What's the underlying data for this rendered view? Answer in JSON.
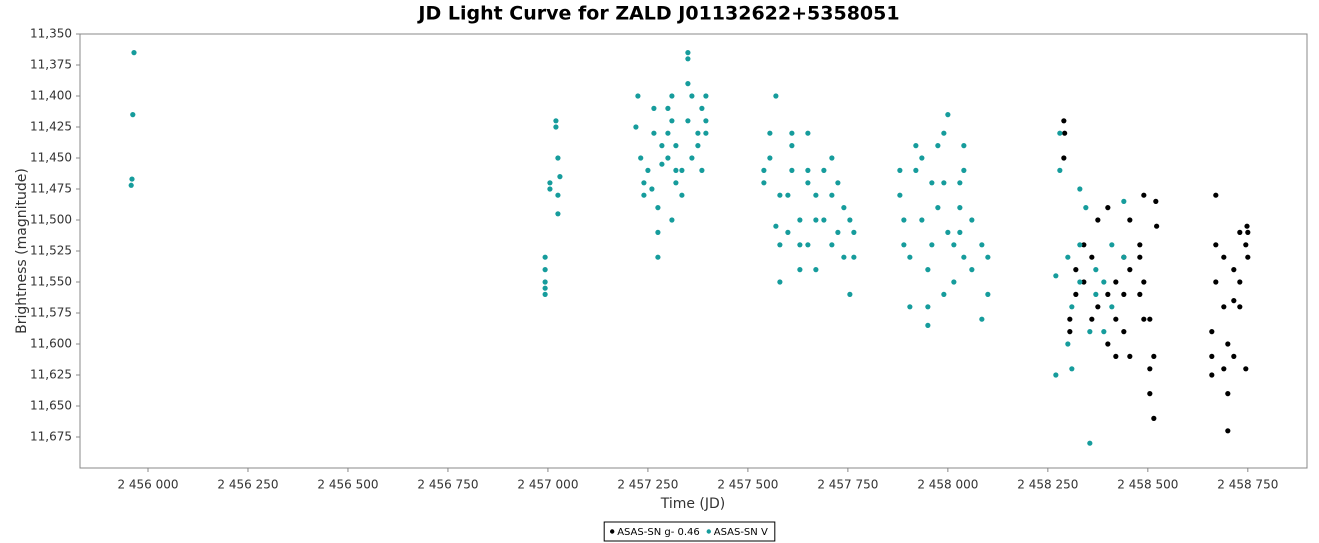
{
  "chart_data": {
    "type": "scatter",
    "title": "JD Light Curve for ZALD J01132622+5358051",
    "x_label": "Time (JD)",
    "y_label": "Brightness (magnitude)",
    "xlim": [
      2455830,
      2458898
    ],
    "ylim": [
      11.7,
      11.35
    ],
    "xticks": [
      {
        "value": 2456000,
        "label": "2 456 000"
      },
      {
        "value": 2456250,
        "label": "2 456 250"
      },
      {
        "value": 2456500,
        "label": "2 456 500"
      },
      {
        "value": 2456750,
        "label": "2 456 750"
      },
      {
        "value": 2457000,
        "label": "2 457 000"
      },
      {
        "value": 2457250,
        "label": "2 457 250"
      },
      {
        "value": 2457500,
        "label": "2 457 500"
      },
      {
        "value": 2457750,
        "label": "2 457 750"
      },
      {
        "value": 2458000,
        "label": "2 458 000"
      },
      {
        "value": 2458250,
        "label": "2 458 250"
      },
      {
        "value": 2458500,
        "label": "2 458 500"
      },
      {
        "value": 2458750,
        "label": "2 458 750"
      }
    ],
    "yticks": [
      {
        "value": 11.35,
        "label": "11,350"
      },
      {
        "value": 11.375,
        "label": "11,375"
      },
      {
        "value": 11.4,
        "label": "11,400"
      },
      {
        "value": 11.425,
        "label": "11,425"
      },
      {
        "value": 11.45,
        "label": "11,450"
      },
      {
        "value": 11.475,
        "label": "11,475"
      },
      {
        "value": 11.5,
        "label": "11,500"
      },
      {
        "value": 11.525,
        "label": "11,525"
      },
      {
        "value": 11.55,
        "label": "11,550"
      },
      {
        "value": 11.575,
        "label": "11,575"
      },
      {
        "value": 11.6,
        "label": "11,600"
      },
      {
        "value": 11.625,
        "label": "11,625"
      },
      {
        "value": 11.65,
        "label": "11,650"
      },
      {
        "value": 11.675,
        "label": "11,675"
      }
    ],
    "legend": "bottom",
    "series": [
      {
        "name": "ASAS-SN g- 0.46",
        "color": "#000000",
        "x": [
          2458290,
          2458290,
          2458292,
          2458305,
          2458305,
          2458320,
          2458320,
          2458340,
          2458340,
          2458360,
          2458360,
          2458375,
          2458375,
          2458400,
          2458400,
          2458400,
          2458420,
          2458420,
          2458420,
          2458440,
          2458440,
          2458440,
          2458455,
          2458455,
          2458455,
          2458480,
          2458480,
          2458480,
          2458490,
          2458490,
          2458490,
          2458505,
          2458505,
          2458505,
          2458515,
          2458515,
          2458520,
          2458522,
          2458660,
          2458660,
          2458660,
          2458670,
          2458670,
          2458670,
          2458690,
          2458690,
          2458690,
          2458700,
          2458700,
          2458700,
          2458715,
          2458715,
          2458715,
          2458730,
          2458730,
          2458730,
          2458745,
          2458745,
          2458748,
          2458750,
          2458750
        ],
        "values": [
          11.42,
          11.45,
          11.43,
          11.58,
          11.59,
          11.54,
          11.56,
          11.52,
          11.55,
          11.53,
          11.58,
          11.57,
          11.5,
          11.56,
          11.49,
          11.6,
          11.55,
          11.58,
          11.61,
          11.53,
          11.56,
          11.59,
          11.5,
          11.54,
          11.61,
          11.52,
          11.53,
          11.56,
          11.48,
          11.55,
          11.58,
          11.58,
          11.62,
          11.64,
          11.61,
          11.66,
          11.485,
          11.505,
          11.59,
          11.61,
          11.625,
          11.48,
          11.52,
          11.55,
          11.53,
          11.57,
          11.62,
          11.6,
          11.64,
          11.67,
          11.54,
          11.565,
          11.61,
          11.51,
          11.55,
          11.57,
          11.52,
          11.62,
          11.505,
          11.51,
          11.53
        ]
      },
      {
        "name": "ASAS-SN V",
        "color": "#169c9c",
        "x": [
          2455960,
          2455958,
          2455965,
          2455962,
          2456993,
          2456993,
          2456993,
          2456993,
          2456993,
          2457005,
          2457005,
          2457020,
          2457020,
          2457025,
          2457025,
          2457025,
          2457030,
          2457220,
          2457225,
          2457232,
          2457240,
          2457240,
          2457250,
          2457260,
          2457265,
          2457265,
          2457275,
          2457275,
          2457275,
          2457285,
          2457285,
          2457300,
          2457300,
          2457300,
          2457310,
          2457310,
          2457310,
          2457320,
          2457320,
          2457320,
          2457335,
          2457335,
          2457350,
          2457350,
          2457350,
          2457350,
          2457360,
          2457360,
          2457375,
          2457375,
          2457385,
          2457385,
          2457395,
          2457395,
          2457395,
          2457540,
          2457540,
          2457555,
          2457555,
          2457570,
          2457570,
          2457580,
          2457580,
          2457580,
          2457600,
          2457600,
          2457610,
          2457610,
          2457610,
          2457630,
          2457630,
          2457630,
          2457650,
          2457650,
          2457650,
          2457650,
          2457670,
          2457670,
          2457670,
          2457690,
          2457690,
          2457710,
          2457710,
          2457710,
          2457725,
          2457725,
          2457740,
          2457740,
          2457755,
          2457755,
          2457765,
          2457765,
          2457880,
          2457880,
          2457890,
          2457890,
          2457905,
          2457905,
          2457920,
          2457920,
          2457935,
          2457935,
          2457950,
          2457950,
          2457950,
          2457960,
          2457960,
          2457975,
          2457975,
          2457990,
          2457990,
          2457990,
          2458000,
          2458000,
          2458015,
          2458015,
          2458030,
          2458030,
          2458030,
          2458040,
          2458040,
          2458040,
          2458060,
          2458060,
          2458085,
          2458085,
          2458100,
          2458100,
          2458270,
          2458270,
          2458280,
          2458280,
          2458300,
          2458300,
          2458310,
          2458310,
          2458330,
          2458330,
          2458330,
          2458345,
          2458355,
          2458355,
          2458370,
          2458370,
          2458390,
          2458390,
          2458410,
          2458410,
          2458440,
          2458440
        ],
        "values": [
          11.467,
          11.472,
          11.365,
          11.415,
          11.53,
          11.54,
          11.55,
          11.555,
          11.56,
          11.47,
          11.475,
          11.42,
          11.425,
          11.45,
          11.48,
          11.495,
          11.465,
          11.425,
          11.4,
          11.45,
          11.47,
          11.48,
          11.46,
          11.475,
          11.41,
          11.43,
          11.49,
          11.51,
          11.53,
          11.455,
          11.44,
          11.41,
          11.43,
          11.45,
          11.4,
          11.42,
          11.5,
          11.44,
          11.46,
          11.47,
          11.48,
          11.46,
          11.39,
          11.365,
          11.37,
          11.42,
          11.4,
          11.45,
          11.43,
          11.44,
          11.46,
          11.41,
          11.4,
          11.42,
          11.43,
          11.47,
          11.46,
          11.43,
          11.45,
          11.4,
          11.505,
          11.48,
          11.52,
          11.55,
          11.48,
          11.51,
          11.43,
          11.44,
          11.46,
          11.5,
          11.54,
          11.52,
          11.43,
          11.46,
          11.47,
          11.52,
          11.48,
          11.5,
          11.54,
          11.46,
          11.5,
          11.45,
          11.48,
          11.52,
          11.47,
          11.51,
          11.49,
          11.53,
          11.5,
          11.56,
          11.51,
          11.53,
          11.46,
          11.48,
          11.5,
          11.52,
          11.53,
          11.57,
          11.44,
          11.46,
          11.45,
          11.5,
          11.54,
          11.57,
          11.585,
          11.47,
          11.52,
          11.44,
          11.49,
          11.43,
          11.47,
          11.56,
          11.415,
          11.51,
          11.52,
          11.55,
          11.47,
          11.49,
          11.51,
          11.46,
          11.44,
          11.53,
          11.5,
          11.54,
          11.52,
          11.58,
          11.53,
          11.56,
          11.545,
          11.625,
          11.43,
          11.46,
          11.53,
          11.6,
          11.57,
          11.62,
          11.475,
          11.52,
          11.55,
          11.49,
          11.59,
          11.68,
          11.54,
          11.56,
          11.55,
          11.59,
          11.52,
          11.57,
          11.485,
          11.53
        ]
      }
    ]
  }
}
